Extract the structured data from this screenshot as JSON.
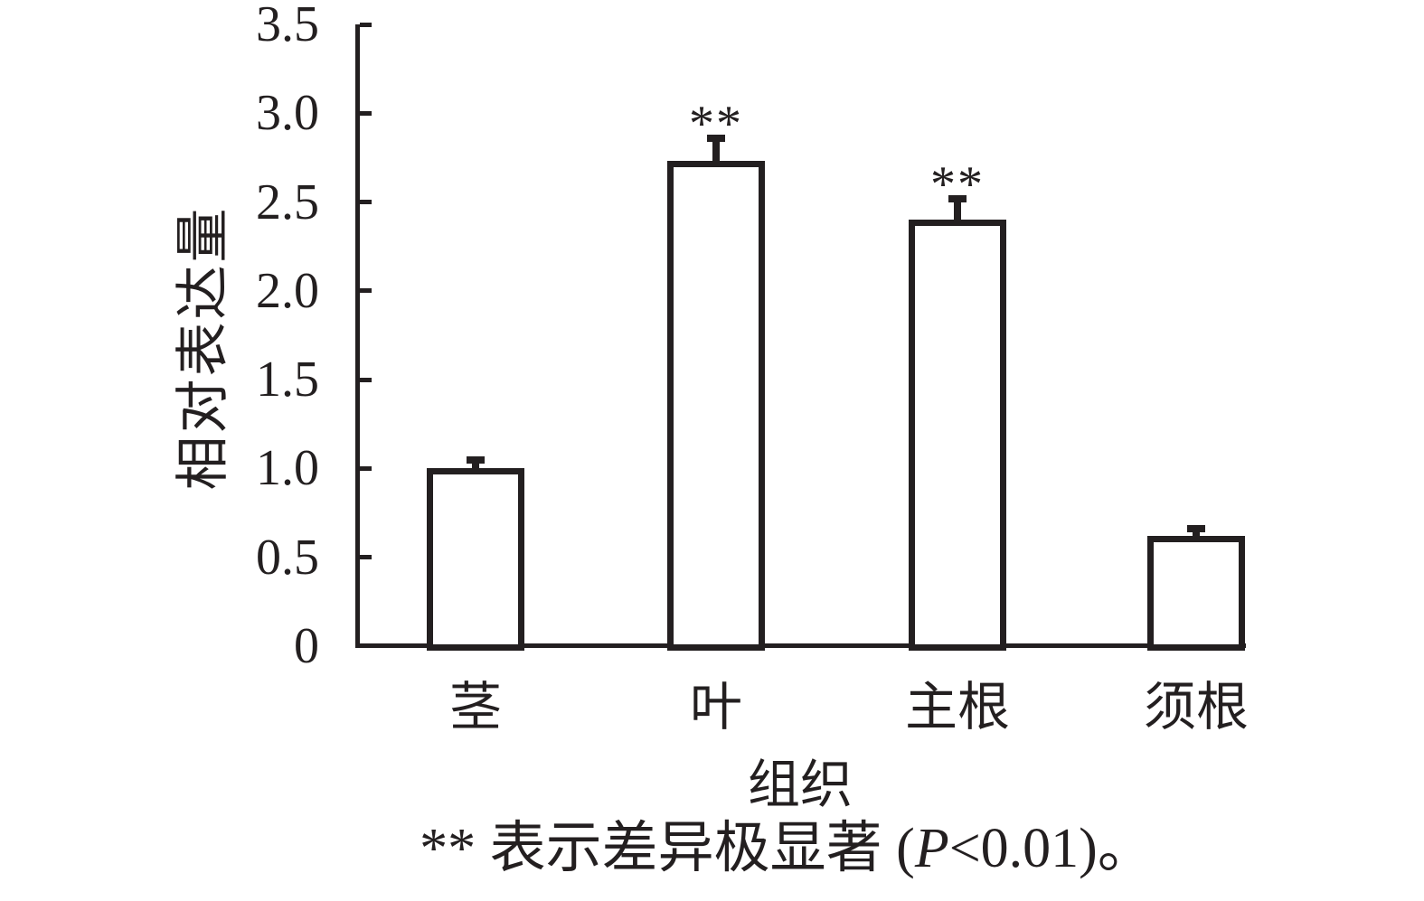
{
  "figure": {
    "background": "#ffffff",
    "ink_color": "#231f20",
    "bar_fill": "#ffffff",
    "bar_border_color": "#231f20"
  },
  "chart_data": {
    "type": "bar",
    "title": "",
    "xlabel": "组织",
    "ylabel": "相对表达量",
    "categories": [
      "茎",
      "叶",
      "主根",
      "须根"
    ],
    "values": [
      1.0,
      2.73,
      2.4,
      0.62
    ],
    "errors": [
      0.05,
      0.13,
      0.12,
      0.04
    ],
    "significance": [
      "",
      "**",
      "**",
      ""
    ],
    "ylim": [
      0,
      3.5
    ],
    "ytick_labels": [
      "3.5",
      "3.0",
      "2.5",
      "2.0",
      "1.5",
      "1.0",
      "0.5",
      "0"
    ],
    "ytick_values": [
      3.5,
      3.0,
      2.5,
      2.0,
      1.5,
      1.0,
      0.5,
      0
    ],
    "grid": false,
    "legend_position": "none",
    "error_bars": "upper-only"
  },
  "footnote": {
    "prefix": "** 表示差异极显著 (",
    "italic": "P",
    "suffix": "<0.01)。"
  }
}
